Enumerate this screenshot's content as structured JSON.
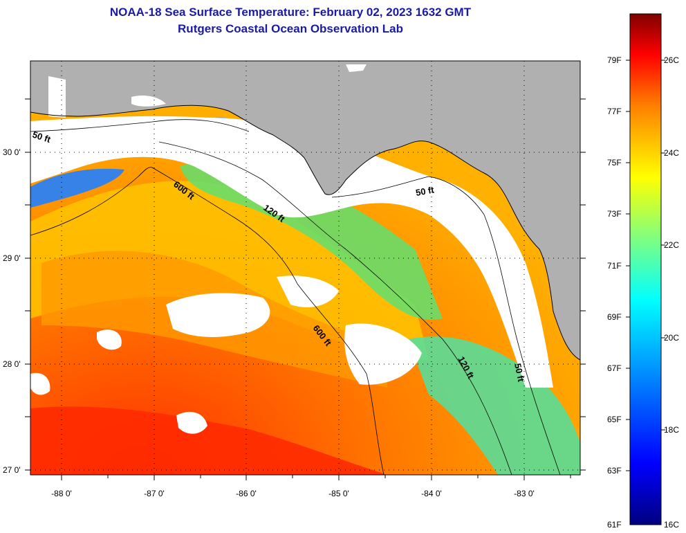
{
  "title": {
    "line1": "NOAA-18 Sea Surface Temperature:  February 02, 2023 1632 GMT",
    "line2": "Rutgers Coastal Ocean Observation Lab"
  },
  "axes": {
    "lon_labels": [
      "-88 0'",
      "-87 0'",
      "-86 0'",
      "-85 0'",
      "-84 0'",
      "-83 0'"
    ],
    "lat_labels": [
      "30 0'",
      "29 0'",
      "28 0'",
      "27 0'"
    ]
  },
  "contours": {
    "fifty_a": "50 ft",
    "sixhundred_a": "600 ft",
    "onetwenty_a": "120 ft",
    "fifty_b": "50 ft",
    "sixhundred_b": "600 ft",
    "onetwenty_b": "120 ft",
    "fifty_c": "50 ft"
  },
  "colorbar": {
    "f_labels": [
      "79F",
      "77F",
      "75F",
      "73F",
      "71F",
      "69F",
      "67F",
      "65F",
      "63F",
      "61F"
    ],
    "c_labels": [
      "26C",
      "24C",
      "22C",
      "20C",
      "18C",
      "16C"
    ]
  },
  "colors": {
    "land": "#b0b0b0",
    "cloud": "#ffffff",
    "warm": "#ff8c00",
    "cool": "#2e9cff",
    "title": "#1a1aa6"
  }
}
